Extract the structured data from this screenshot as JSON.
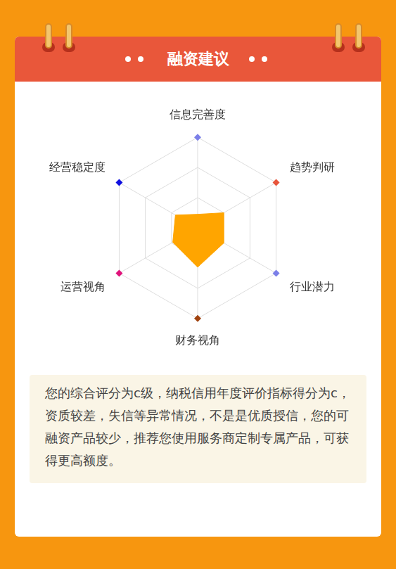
{
  "header": {
    "title": "融资建议"
  },
  "chart_data": {
    "type": "radar",
    "categories": [
      "信息完善度",
      "趋势判研",
      "行业潜力",
      "财务视角",
      "运营视角",
      "经营稳定度"
    ],
    "values": [
      0.45,
      1.0,
      1.0,
      1.3,
      0.95,
      0.85
    ],
    "color": "#ffa500",
    "ylim": [
      0,
      3
    ],
    "yticks": [
      0,
      1,
      2,
      3
    ],
    "grid": true,
    "tick_labels": false
  },
  "advice": "您的综合评分为c级，纳税信用年度评价指标得分为c，资质较差，失信等异常情况，不是是优质授信，您的可融资产品较少，推荐您使用服务商定制专属产品，可获得更高额度。"
}
